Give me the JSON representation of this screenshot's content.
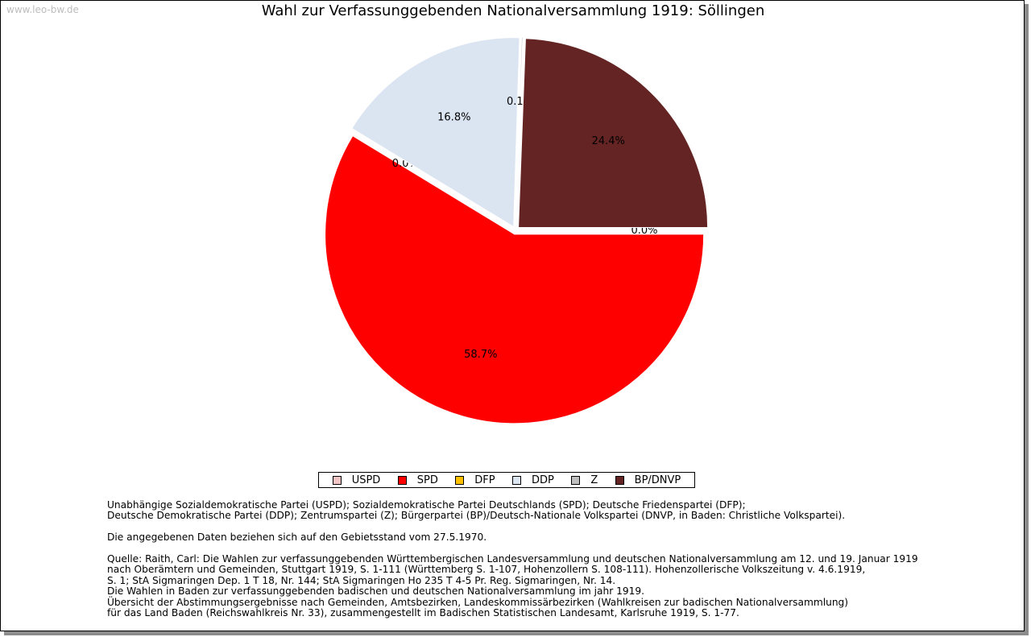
{
  "watermark": "www.leo-bw.de",
  "chart_data": {
    "type": "pie",
    "title": "Wahl zur Verfassunggebenden Nationalversammlung 1919: Söllingen",
    "slices": [
      {
        "label": "USPD",
        "value": 0.0,
        "display": "0.0%",
        "color": "#f2c4c4"
      },
      {
        "label": "SPD",
        "value": 58.7,
        "display": "58.7%",
        "color": "#ff0000"
      },
      {
        "label": "DFP",
        "value": 0.0,
        "display": "0.0%",
        "color": "#ffc000"
      },
      {
        "label": "DDP",
        "value": 16.8,
        "display": "16.8%",
        "color": "#dbe4f1"
      },
      {
        "label": "Z",
        "value": 0.1,
        "display": "0.1%",
        "color": "#bfbfbf"
      },
      {
        "label": "BP/DNVP",
        "value": 24.4,
        "display": "24.4%",
        "color": "#632423"
      }
    ],
    "legend_position": "bottom"
  },
  "notes": {
    "parties": [
      "Unabhängige Sozialdemokratische Partei (USPD); Sozialdemokratische Partei Deutschlands (SPD); Deutsche Friedenspartei (DFP);",
      "Deutsche Demokratische Partei (DDP); Zentrumspartei (Z); Bürgerpartei (BP)/Deutsch-Nationale Volkspartei (DNVP, in Baden: Christliche Volkspartei)."
    ],
    "territory": "Die angegebenen Daten beziehen sich auf den Gebietsstand vom 27.5.1970.",
    "source": [
      "Quelle: Raith, Carl: Die Wahlen zur verfassunggebenden Württembergischen Landesversammlung und deutschen Nationalversammlung am 12. und 19. Januar 1919",
      "nach Oberämtern und Gemeinden, Stuttgart 1919, S. 1-111 (Württemberg S. 1-107, Hohenzollern S. 108-111). Hohenzollerische Volkszeitung v. 4.6.1919,",
      "S. 1; StA Sigmaringen Dep. 1 T 18, Nr. 144; StA Sigmaringen Ho 235 T 4-5 Pr. Reg. Sigmaringen, Nr. 14.",
      "Die Wahlen in Baden zur verfassunggebenden badischen und deutschen Nationalversammlung im jahr 1919.",
      "Übersicht der Abstimmungsergebnisse nach Gemeinden, Amtsbezirken, Landeskommissärbezirken (Wahlkreisen zur badischen Nationalversammlung)",
      "für das Land Baden (Reichswahlkreis Nr. 33), zusammengestellt im Badischen Statistischen Landesamt, Karlsruhe 1919, S. 1-77."
    ]
  }
}
